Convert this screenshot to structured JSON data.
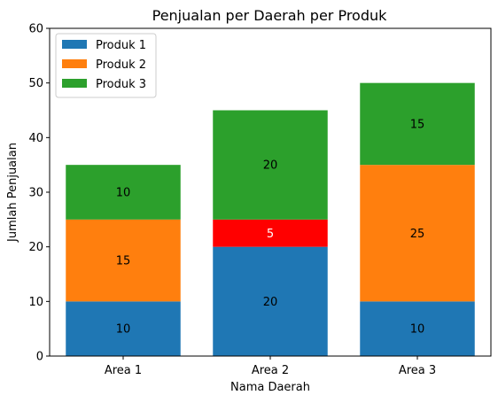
{
  "chart_data": {
    "type": "bar",
    "stacked": true,
    "title": "Penjualan per Daerah per Produk",
    "xlabel": "Nama Daerah",
    "ylabel": "Jumlah Penjualan",
    "categories": [
      "Area 1",
      "Area 2",
      "Area 3"
    ],
    "ylim": [
      0,
      60
    ],
    "yticks": [
      0,
      10,
      20,
      30,
      40,
      50,
      60
    ],
    "legend_position": "top-left",
    "series": [
      {
        "name": "Produk 1",
        "values": [
          10,
          20,
          10
        ],
        "color": "#1f77b4",
        "bar_colors": [
          "#1f77b4",
          "#1f77b4",
          "#1f77b4"
        ],
        "label_colors": [
          "#000000",
          "#000000",
          "#000000"
        ]
      },
      {
        "name": "Produk 2",
        "values": [
          15,
          5,
          25
        ],
        "color": "#ff7f0e",
        "bar_colors": [
          "#ff7f0e",
          "#ff0000",
          "#ff7f0e"
        ],
        "label_colors": [
          "#000000",
          "#ffffff",
          "#000000"
        ]
      },
      {
        "name": "Produk 3",
        "values": [
          10,
          20,
          15
        ],
        "color": "#2ca02c",
        "bar_colors": [
          "#2ca02c",
          "#2ca02c",
          "#2ca02c"
        ],
        "label_colors": [
          "#000000",
          "#000000",
          "#000000"
        ]
      }
    ]
  }
}
